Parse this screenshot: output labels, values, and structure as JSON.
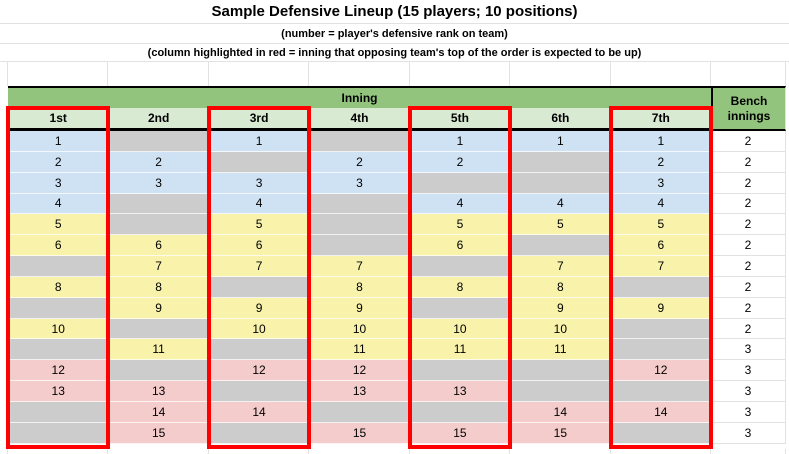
{
  "titles": {
    "main": "Sample Defensive Lineup (15 players; 10 positions)",
    "sub1": "(number = player's defensive rank on team)",
    "sub2": "(column highlighted in red = inning that opposing team's top of the order is expected to be up)"
  },
  "table": {
    "inning_header": "Inning",
    "bench_header": "Bench innings",
    "columns": [
      "1st",
      "2nd",
      "3rd",
      "4th",
      "5th",
      "6th",
      "7th"
    ],
    "highlighted_columns": [
      "1st",
      "3rd",
      "5th",
      "7th"
    ],
    "rows": [
      {
        "rank": "1",
        "group": "blue",
        "innings": [
          "1",
          "",
          "1",
          "",
          "1",
          "1",
          "1"
        ],
        "bench": "2"
      },
      {
        "rank": "2",
        "group": "blue",
        "innings": [
          "2",
          "2",
          "",
          "2",
          "2",
          "",
          "2"
        ],
        "bench": "2"
      },
      {
        "rank": "3",
        "group": "blue",
        "innings": [
          "3",
          "3",
          "3",
          "3",
          "",
          "",
          "3"
        ],
        "bench": "2"
      },
      {
        "rank": "4",
        "group": "blue",
        "innings": [
          "4",
          "",
          "4",
          "",
          "4",
          "4",
          "4"
        ],
        "bench": "2"
      },
      {
        "rank": "5",
        "group": "yellow",
        "innings": [
          "5",
          "",
          "5",
          "",
          "5",
          "5",
          "5"
        ],
        "bench": "2"
      },
      {
        "rank": "6",
        "group": "yellow",
        "innings": [
          "6",
          "6",
          "6",
          "",
          "6",
          "",
          "6"
        ],
        "bench": "2"
      },
      {
        "rank": "7",
        "group": "yellow",
        "innings": [
          "",
          "7",
          "7",
          "7",
          "",
          "7",
          "7"
        ],
        "bench": "2"
      },
      {
        "rank": "8",
        "group": "yellow",
        "innings": [
          "8",
          "8",
          "",
          "8",
          "8",
          "8",
          ""
        ],
        "bench": "2"
      },
      {
        "rank": "9",
        "group": "yellow",
        "innings": [
          "",
          "9",
          "9",
          "9",
          "",
          "9",
          "9"
        ],
        "bench": "2"
      },
      {
        "rank": "10",
        "group": "yellow",
        "innings": [
          "10",
          "",
          "10",
          "10",
          "10",
          "10",
          ""
        ],
        "bench": "2"
      },
      {
        "rank": "11",
        "group": "yellow",
        "innings": [
          "",
          "11",
          "",
          "11",
          "11",
          "11",
          ""
        ],
        "bench": "3"
      },
      {
        "rank": "12",
        "group": "pink",
        "innings": [
          "12",
          "",
          "12",
          "12",
          "",
          "",
          "12"
        ],
        "bench": "3"
      },
      {
        "rank": "13",
        "group": "pink",
        "innings": [
          "13",
          "13",
          "",
          "13",
          "13",
          "",
          ""
        ],
        "bench": "3"
      },
      {
        "rank": "14",
        "group": "pink",
        "innings": [
          "",
          "14",
          "14",
          "",
          "",
          "14",
          "14"
        ],
        "bench": "3"
      },
      {
        "rank": "15",
        "group": "pink",
        "innings": [
          "",
          "15",
          "",
          "15",
          "15",
          "15",
          ""
        ],
        "bench": "3"
      }
    ]
  },
  "colors": {
    "header_green": "#93c47d",
    "header_light_green": "#d9ead3",
    "group_blue": "#cfe2f3",
    "group_yellow": "#f8f2ab",
    "group_pink": "#f4cccc",
    "bench_gray": "#cccccc",
    "highlight_red": "#ff0000",
    "gridline": "#e2e2e2"
  }
}
